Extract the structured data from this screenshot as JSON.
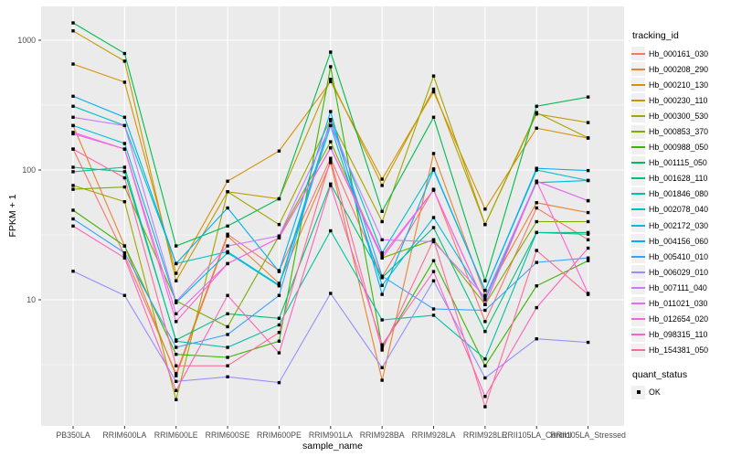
{
  "chart_data": {
    "type": "line",
    "title": "",
    "xlabel": "sample_name",
    "ylabel": "FPKM + 1",
    "y_scale": "log10",
    "ylim": [
      1.05,
      1800
    ],
    "grid": true,
    "panel_bg": "#EBEBEB",
    "grid_color": "#FFFFFF",
    "y_ticks": [
      {
        "label": "10",
        "value": 10
      },
      {
        "label": "100",
        "value": 100
      },
      {
        "label": "1000",
        "value": 1000
      }
    ],
    "y_minor_values": [
      3.162,
      31.62,
      316.2
    ],
    "x_categories": [
      "PB350LA",
      "RRIM600LA",
      "RRIM600LE",
      "RRIM600SE",
      "RRIM600PE",
      "RRIM901LA",
      "RRIM928BA",
      "RRIM928LA",
      "RRIM928LE",
      "RRII105LA_Control",
      "RRII105LA_Stressed"
    ],
    "point": {
      "shape": "square",
      "color": "#000000",
      "size": 3.4
    },
    "legend": {
      "position": "right",
      "tracking_title": "tracking_id",
      "quant_title": "quant_status",
      "quant_items": [
        {
          "label": "OK",
          "marker": "black-square"
        }
      ]
    },
    "series": [
      {
        "name": "Hb_000161_030",
        "color": "#F8766D",
        "values": [
          145,
          22,
          2.7,
          32,
          16.8,
          123,
          15,
          71,
          6.8,
          51,
          29
        ]
      },
      {
        "name": "Hb_000208_290",
        "color": "#EA8331",
        "values": [
          220,
          26,
          2.6,
          31,
          13.4,
          114,
          2.4,
          134,
          10.8,
          56,
          47
        ]
      },
      {
        "name": "Hb_000210_130",
        "color": "#D89000",
        "values": [
          655,
          475,
          16,
          82,
          140,
          480,
          85,
          400,
          50,
          210,
          176
        ]
      },
      {
        "name": "Hb_000230_110",
        "color": "#C09B00",
        "values": [
          1180,
          690,
          14,
          68,
          60,
          500,
          76,
          420,
          38,
          270,
          232
        ]
      },
      {
        "name": "Hb_000300_530",
        "color": "#A3A500",
        "values": [
          76,
          57,
          1.7,
          68,
          38,
          245,
          40,
          530,
          38,
          277,
          177
        ]
      },
      {
        "name": "Hb_000853_370",
        "color": "#7CAE00",
        "values": [
          71,
          74,
          9.8,
          6.2,
          31,
          165,
          21,
          29,
          9.2,
          40,
          40
        ]
      },
      {
        "name": "Hb_000988_050",
        "color": "#39B600",
        "values": [
          49,
          26,
          3.8,
          3.6,
          4.8,
          625,
          4.3,
          20,
          3.1,
          12.8,
          20
        ]
      },
      {
        "name": "Hb_001115_050",
        "color": "#00BB4E",
        "values": [
          1360,
          790,
          26,
          37,
          60,
          810,
          48,
          255,
          14,
          310,
          365
        ]
      },
      {
        "name": "Hb_001628_110",
        "color": "#00BF7D",
        "values": [
          105,
          97,
          4.9,
          7.8,
          7.2,
          78,
          14.8,
          36,
          5.7,
          33,
          33
        ]
      },
      {
        "name": "Hb_001846_080",
        "color": "#00C1A3",
        "values": [
          97,
          105,
          4.8,
          4.3,
          6.4,
          34,
          7,
          7.6,
          3.5,
          33,
          32
        ]
      },
      {
        "name": "Hb_002078_040",
        "color": "#00BFC4",
        "values": [
          310,
          220,
          19,
          23.5,
          13,
          240,
          23,
          102,
          11.8,
          100,
          83
        ]
      },
      {
        "name": "Hb_002172_030",
        "color": "#00BAE0",
        "values": [
          220,
          160,
          9.5,
          23,
          12.8,
          220,
          12.9,
          43,
          10,
          80,
          83
        ]
      },
      {
        "name": "Hb_004156_060",
        "color": "#00B0F6",
        "values": [
          370,
          255,
          19,
          51,
          16.5,
          282,
          11,
          100,
          11.8,
          103,
          99
        ]
      },
      {
        "name": "Hb_005410_010",
        "color": "#35A2FF",
        "values": [
          42,
          23,
          4.3,
          5.4,
          10.8,
          245,
          15.2,
          8.5,
          8.3,
          19.4,
          21
        ]
      },
      {
        "name": "Hb_006029_010",
        "color": "#9590FF",
        "values": [
          16.6,
          10.8,
          2.35,
          2.55,
          2.3,
          11.2,
          3,
          14,
          2.5,
          5,
          4.7
        ]
      },
      {
        "name": "Hb_007111_040",
        "color": "#C77CFF",
        "values": [
          255,
          220,
          9.7,
          26,
          31,
          220,
          29,
          28,
          10.5,
          82,
          58
        ]
      },
      {
        "name": "Hb_011021_030",
        "color": "#E76BF3",
        "values": [
          195,
          145,
          7.8,
          19,
          30,
          148,
          21,
          70,
          9.2,
          82,
          58
        ]
      },
      {
        "name": "Hb_012654_020",
        "color": "#FA62DB",
        "values": [
          190,
          145,
          6.8,
          19,
          30,
          148,
          22,
          70,
          9.2,
          82,
          11.2
        ]
      },
      {
        "name": "Hb_098315_110",
        "color": "#FF62BC",
        "values": [
          37,
          21,
          2,
          10.8,
          3.9,
          76,
          4.5,
          16.5,
          1.8,
          8.7,
          25
        ]
      },
      {
        "name": "Hb_154381_050",
        "color": "#FF6A98",
        "values": [
          145,
          87,
          3.1,
          3.1,
          5.6,
          120,
          4.1,
          29,
          1.5,
          24,
          11
        ]
      }
    ]
  }
}
